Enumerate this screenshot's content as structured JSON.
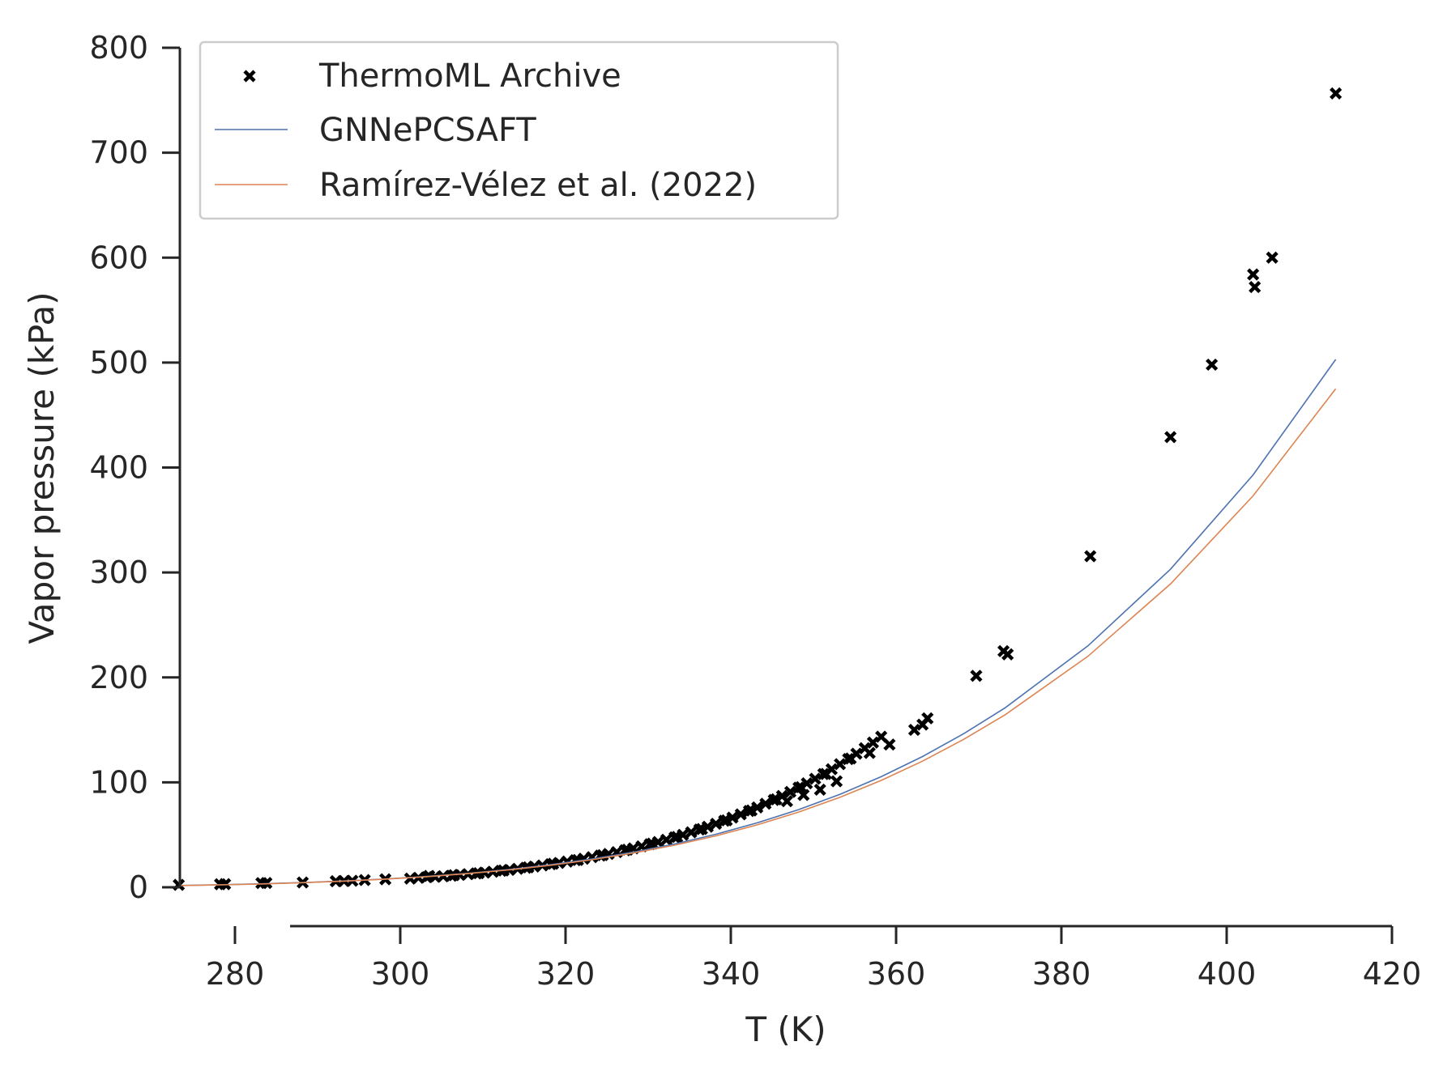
{
  "chart_data": {
    "type": "scatter",
    "xlabel": "T (K)",
    "ylabel": "Vapor pressure (kPa)",
    "xlim": [
      270,
      420
    ],
    "ylim": [
      0,
      800
    ],
    "xticks": [
      "280",
      "300",
      "320",
      "340",
      "360",
      "380",
      "400",
      "420"
    ],
    "yticks": [
      "0",
      "100",
      "200",
      "300",
      "400",
      "500",
      "600",
      "700",
      "800"
    ],
    "grid": false,
    "legend_position": "top-left",
    "series": [
      {
        "name": "ThermoML Archive",
        "kind": "scatter",
        "marker": "x",
        "color": "#000000",
        "points": [
          [
            273.2,
            2.3
          ],
          [
            278.2,
            2.9
          ],
          [
            278.8,
            3.0
          ],
          [
            283.2,
            4.0
          ],
          [
            283.8,
            4.1
          ],
          [
            288.2,
            4.6
          ],
          [
            292.2,
            5.8
          ],
          [
            293.2,
            6.0
          ],
          [
            294.2,
            6.2
          ],
          [
            295.7,
            6.9
          ],
          [
            298.2,
            7.6
          ],
          [
            301.2,
            8.3
          ],
          [
            302.2,
            9.0
          ],
          [
            303.2,
            9.6
          ],
          [
            304.2,
            10.0
          ],
          [
            305.2,
            10.5
          ],
          [
            306.2,
            11.0
          ],
          [
            307.2,
            11.8
          ],
          [
            308.2,
            12.5
          ],
          [
            309.2,
            13.2
          ],
          [
            310.2,
            14.0
          ],
          [
            311.2,
            14.8
          ],
          [
            312.2,
            15.7
          ],
          [
            313.2,
            16.6
          ],
          [
            314.2,
            17.6
          ],
          [
            315.2,
            18.6
          ],
          [
            316.2,
            19.7
          ],
          [
            317.2,
            20.8
          ],
          [
            318.2,
            22.0
          ],
          [
            319.2,
            23.2
          ],
          [
            320.2,
            24.5
          ],
          [
            321.2,
            25.8
          ],
          [
            322.2,
            27.2
          ],
          [
            323.2,
            28.7
          ],
          [
            324.2,
            30.2
          ],
          [
            325.2,
            31.8
          ],
          [
            326.2,
            33.5
          ],
          [
            327.2,
            35.3
          ],
          [
            328.2,
            37.1
          ],
          [
            329.2,
            39.0
          ],
          [
            330.2,
            41.0
          ],
          [
            331.2,
            43.1
          ],
          [
            332.2,
            45.3
          ],
          [
            333.2,
            47.6
          ],
          [
            334.2,
            50.0
          ],
          [
            335.2,
            52.4
          ],
          [
            336.2,
            55.0
          ],
          [
            337.2,
            57.7
          ],
          [
            338.2,
            60.5
          ],
          [
            339.2,
            63.4
          ],
          [
            340.2,
            66.4
          ],
          [
            341.2,
            69.5
          ],
          [
            342.2,
            72.7
          ],
          [
            343.2,
            76.1
          ],
          [
            344.2,
            79.6
          ],
          [
            345.2,
            83.2
          ],
          [
            346.2,
            87.0
          ],
          [
            347.2,
            90.9
          ],
          [
            348.2,
            94.9
          ],
          [
            349.2,
            99.1
          ],
          [
            350.2,
            103.4
          ],
          [
            351.2,
            107.9
          ],
          [
            352.2,
            112.5
          ],
          [
            353.2,
            117.3
          ],
          [
            354.2,
            122.2
          ],
          [
            355.2,
            127.3
          ],
          [
            356.2,
            132.5
          ],
          [
            357.2,
            137.9
          ],
          [
            358.2,
            143.5
          ],
          [
            359.2,
            136.0
          ],
          [
            303.5,
            10.8
          ],
          [
            306.5,
            11.5
          ],
          [
            309.5,
            13.4
          ],
          [
            312.5,
            16.0
          ],
          [
            315.5,
            19.0
          ],
          [
            318.5,
            22.4
          ],
          [
            321.5,
            26.0
          ],
          [
            324.5,
            30.6
          ],
          [
            327.5,
            35.8
          ],
          [
            330.5,
            41.6
          ],
          [
            333.5,
            48.0
          ],
          [
            336.5,
            55.5
          ],
          [
            339.5,
            63.8
          ],
          [
            342.5,
            73.2
          ],
          [
            345.5,
            83.8
          ],
          [
            348.5,
            95.4
          ],
          [
            351.5,
            108.0
          ],
          [
            354.5,
            122.7
          ],
          [
            356.8,
            128.0
          ],
          [
            352.8,
            101.0
          ],
          [
            350.8,
            93.0
          ],
          [
            348.8,
            88.0
          ],
          [
            346.8,
            82.0
          ],
          [
            362.2,
            150.0
          ],
          [
            363.2,
            155.0
          ],
          [
            363.8,
            161.0
          ],
          [
            369.7,
            201.5
          ],
          [
            373.0,
            225.0
          ],
          [
            373.5,
            222.0
          ],
          [
            383.5,
            315.5
          ],
          [
            393.2,
            429.0
          ],
          [
            398.2,
            498.0
          ],
          [
            403.2,
            584.0
          ],
          [
            403.4,
            572.0
          ],
          [
            405.5,
            600.0
          ],
          [
            413.2,
            756.5
          ]
        ]
      },
      {
        "name": "GNNePCSAFT",
        "kind": "line",
        "color": "#4c72b0",
        "points": [
          [
            273.2,
            1.7
          ],
          [
            278.2,
            2.4
          ],
          [
            283.2,
            3.3
          ],
          [
            288.2,
            4.5
          ],
          [
            293.2,
            6.0
          ],
          [
            298.2,
            7.9
          ],
          [
            303.2,
            10.3
          ],
          [
            308.2,
            13.3
          ],
          [
            313.2,
            17.0
          ],
          [
            318.2,
            21.5
          ],
          [
            323.2,
            26.9
          ],
          [
            328.2,
            33.5
          ],
          [
            333.2,
            41.3
          ],
          [
            338.2,
            50.5
          ],
          [
            343.2,
            61.4
          ],
          [
            348.2,
            74.0
          ],
          [
            353.2,
            88.6
          ],
          [
            358.2,
            105.4
          ],
          [
            363.2,
            124.6
          ],
          [
            368.2,
            146.4
          ],
          [
            373.2,
            171.0
          ],
          [
            383.2,
            230.0
          ],
          [
            393.2,
            303.0
          ],
          [
            403.2,
            393.0
          ],
          [
            413.2,
            503.0
          ]
        ]
      },
      {
        "name": "Ramírez-Vélez et al. (2022)",
        "kind": "line",
        "color": "#dd8452",
        "points": [
          [
            273.2,
            1.6
          ],
          [
            278.2,
            2.3
          ],
          [
            283.2,
            3.2
          ],
          [
            288.2,
            4.4
          ],
          [
            293.2,
            5.9
          ],
          [
            298.2,
            7.8
          ],
          [
            303.2,
            10.1
          ],
          [
            308.2,
            13.0
          ],
          [
            313.2,
            16.6
          ],
          [
            318.2,
            21.0
          ],
          [
            323.2,
            26.2
          ],
          [
            328.2,
            32.6
          ],
          [
            333.2,
            40.1
          ],
          [
            338.2,
            49.0
          ],
          [
            343.2,
            59.5
          ],
          [
            348.2,
            71.7
          ],
          [
            353.2,
            85.7
          ],
          [
            358.2,
            101.8
          ],
          [
            363.2,
            120.2
          ],
          [
            368.2,
            141.0
          ],
          [
            373.2,
            164.4
          ],
          [
            383.2,
            220.0
          ],
          [
            393.2,
            289.0
          ],
          [
            403.2,
            373.0
          ],
          [
            413.2,
            475.0
          ]
        ]
      }
    ]
  }
}
